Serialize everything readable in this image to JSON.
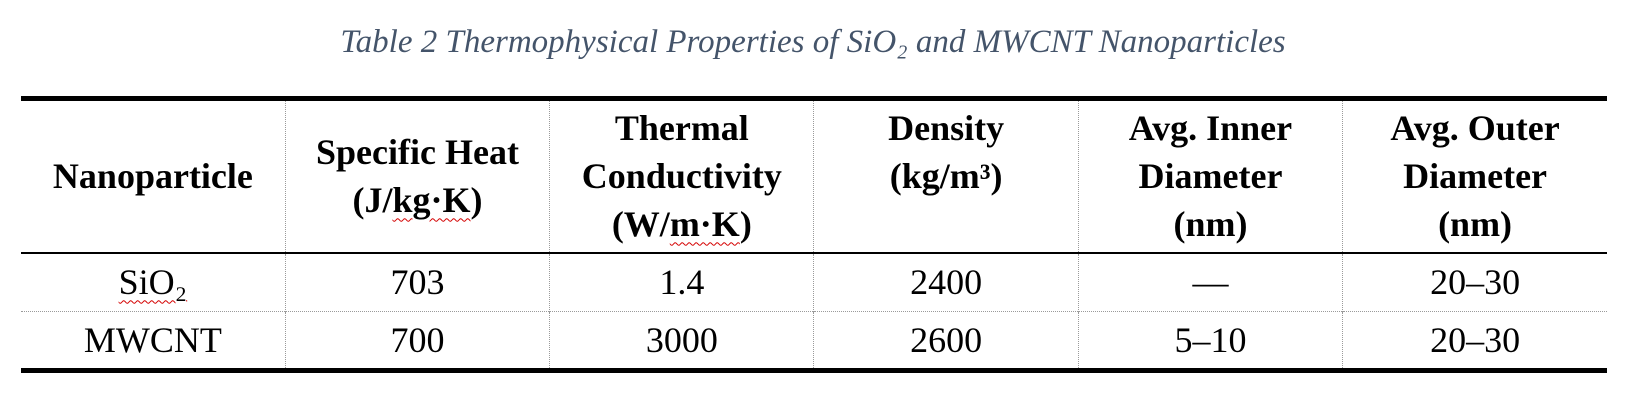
{
  "caption": "Table 2 Thermophysical Properties of SiO₂ and MWCNT Nanoparticles",
  "table": {
    "header": {
      "nanoparticle": "Nanoparticle",
      "specific_heat": {
        "line1": "Specific Heat",
        "line2_pre": "(J/",
        "line2_flag": "kg·K",
        "line2_post": ")"
      },
      "thermal_conductivity": {
        "line1": "Thermal",
        "line2": "Conductivity",
        "line3_pre": "(W/",
        "line3_flag": "m·K",
        "line3_post": ")"
      },
      "density": {
        "line1": "Density",
        "line2": "(kg/m³)"
      },
      "inner_diameter": {
        "line1": "Avg. Inner",
        "line2": "Diameter",
        "line3": "(nm)"
      },
      "outer_diameter": {
        "line1": "Avg. Outer",
        "line2": "Diameter",
        "line3": "(nm)"
      }
    },
    "rows": [
      {
        "nanoparticle": "SiO₂",
        "specific_heat": "703",
        "thermal_conductivity": "1.4",
        "density": "2400",
        "inner_diameter": "—",
        "outer_diameter": "20–30"
      },
      {
        "nanoparticle": "MWCNT",
        "specific_heat": "700",
        "thermal_conductivity": "3000",
        "density": "2600",
        "inner_diameter": "5–10",
        "outer_diameter": "20–30"
      }
    ]
  }
}
